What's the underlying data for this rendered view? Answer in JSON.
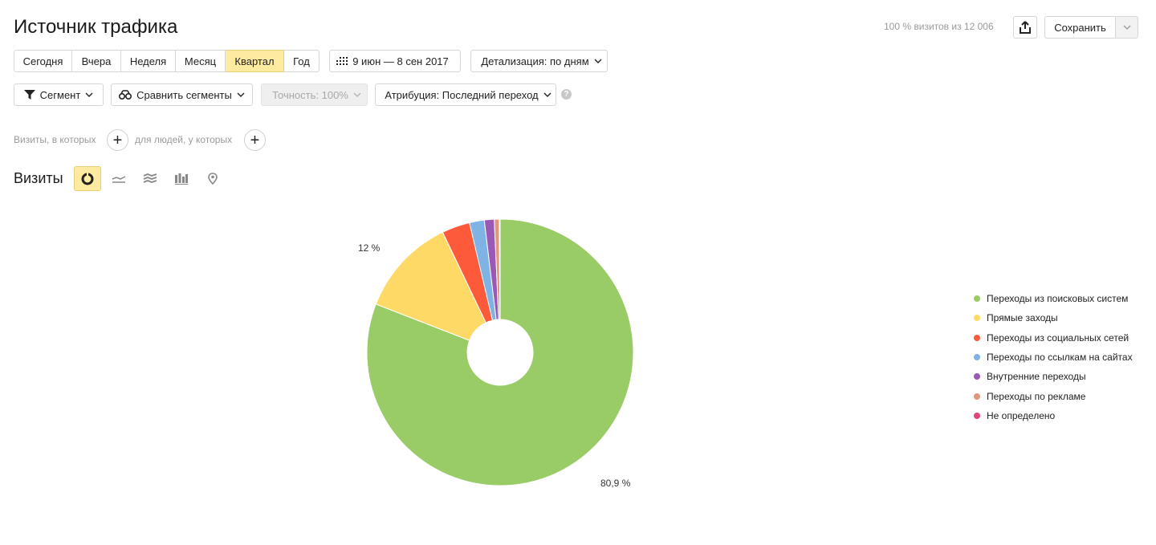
{
  "header": {
    "title": "Источник трафика",
    "visits_info": "100 % визитов из 12 006",
    "save_label": "Сохранить"
  },
  "period": {
    "buttons": [
      "Сегодня",
      "Вчера",
      "Неделя",
      "Месяц",
      "Квартал",
      "Год"
    ],
    "active": "Квартал"
  },
  "date_range": "9 июн — 8 сен 2017",
  "detail": "Детализация: по дням",
  "toolbar": {
    "segment": "Сегмент",
    "compare": "Сравнить сегменты",
    "accuracy": "Точность: 100%",
    "attribution": "Атрибуция: Последний переход",
    "help": "?"
  },
  "filters": {
    "visits_where": "Визиты, в которых",
    "people_where": "для людей, у которых"
  },
  "visits_title": "Визиты",
  "chart_icons": [
    "pie-chart-icon",
    "line-chart-icon",
    "area-chart-icon",
    "bar-chart-icon",
    "map-icon"
  ],
  "chart_data": {
    "type": "pie",
    "donut": true,
    "legend_position": "right",
    "categories": [
      "Переходы из поисковых систем",
      "Прямые заходы",
      "Переходы из социальных сетей",
      "Переходы по ссылкам на сайтах",
      "Внутренние переходы",
      "Переходы по рекламе",
      "Не определено"
    ],
    "values": [
      80.9,
      12.0,
      3.4,
      1.8,
      1.2,
      0.6,
      0.1
    ],
    "colors": [
      "#99cc66",
      "#ffd966",
      "#fc5a3a",
      "#7fb2e5",
      "#9b59b6",
      "#e0977b",
      "#e0457b"
    ],
    "data_labels": {
      "0": "80,9 %",
      "1": "12 %"
    }
  }
}
